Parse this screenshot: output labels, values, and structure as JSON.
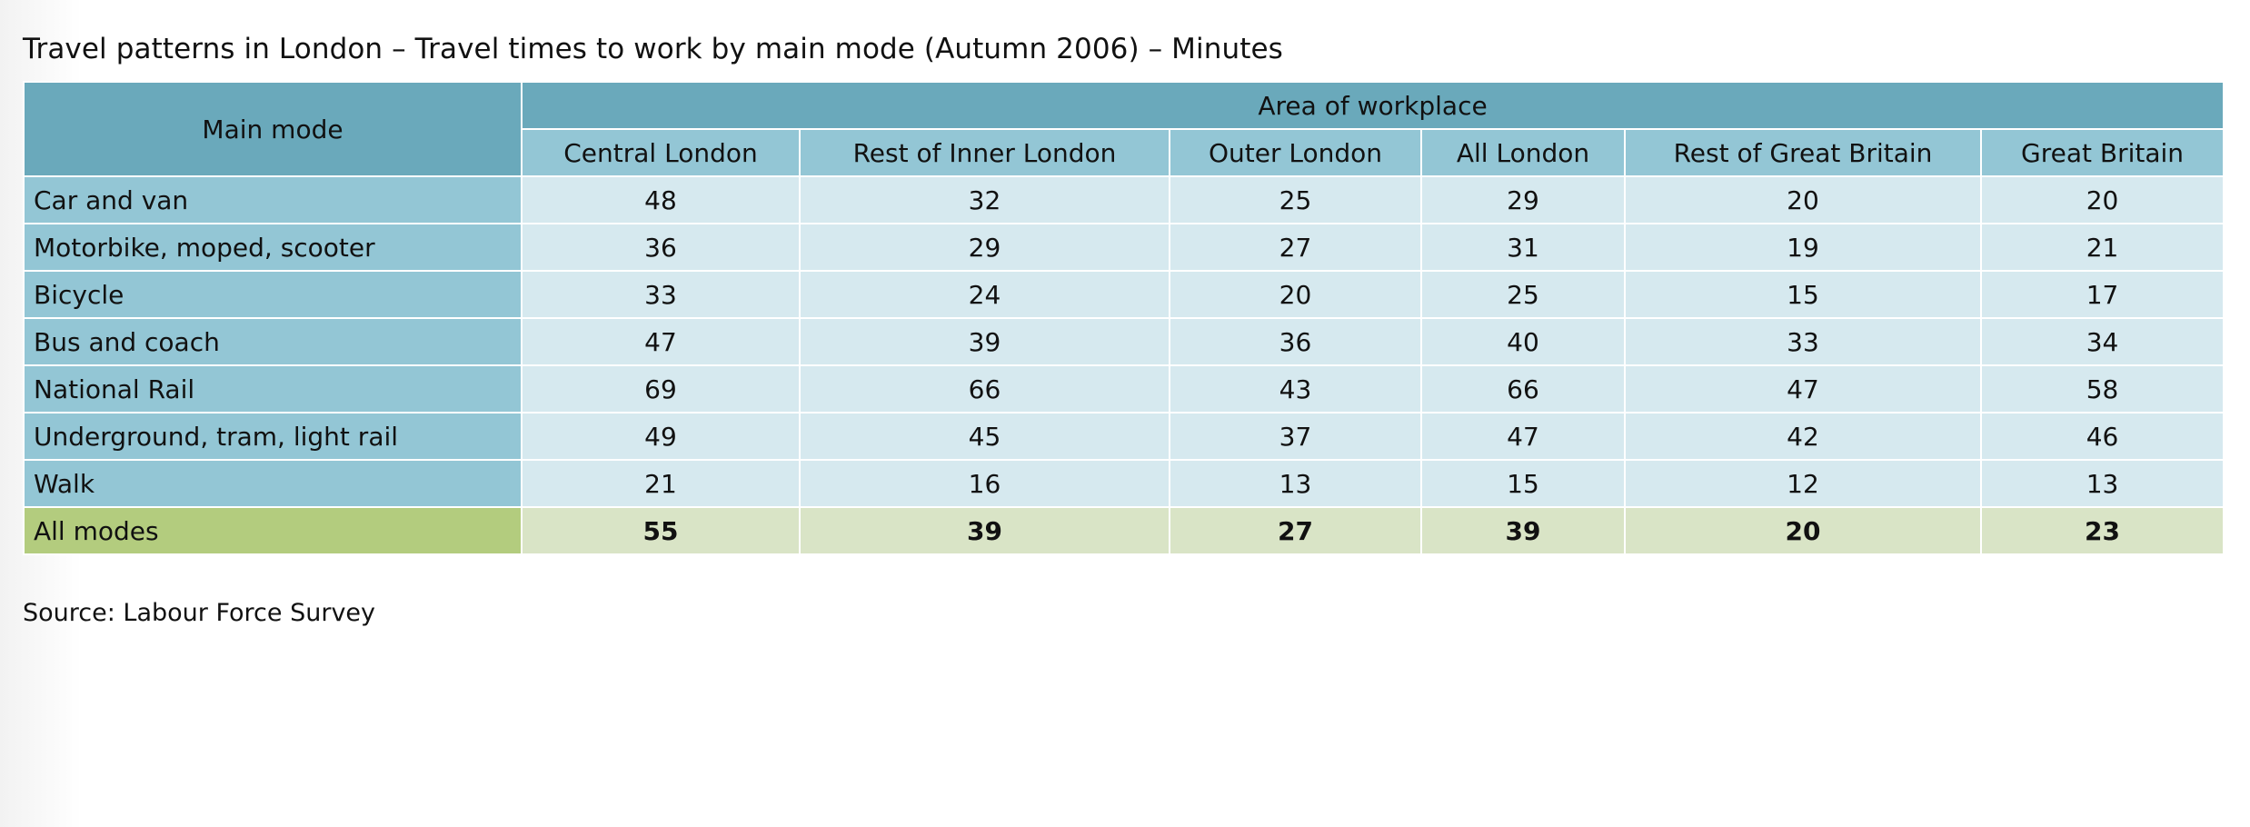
{
  "title": "Travel patterns in London – Travel times to work by main mode (Autumn 2006) – Minutes",
  "source": "Source: Labour Force Survey",
  "colors": {
    "header_dark": "#6aa9bb",
    "header_light": "#93c6d5",
    "cell": "#d6e9ef",
    "total_label": "#b3cc7e",
    "total_cell": "#d9e4c6"
  },
  "chart_data": {
    "type": "table",
    "title": "Travel patterns in London – Travel times to work by main mode (Autumn 2006) – Minutes",
    "row_header": "Main mode",
    "column_group": "Area of workplace",
    "columns": [
      "Central London",
      "Rest of Inner London",
      "Outer London",
      "All London",
      "Rest of Great Britain",
      "Great Britain"
    ],
    "rows": [
      {
        "label": "Car and van",
        "values": [
          "48",
          "32",
          "25",
          "29",
          "20",
          "20"
        ]
      },
      {
        "label": "Motorbike, moped, scooter",
        "values": [
          "36",
          "29",
          "27",
          "31",
          "19",
          "21"
        ]
      },
      {
        "label": "Bicycle",
        "values": [
          "33",
          "24",
          "20",
          "25",
          "15",
          "17"
        ]
      },
      {
        "label": "Bus and coach",
        "values": [
          "47",
          "39",
          "36",
          "40",
          "33",
          "34"
        ]
      },
      {
        "label": "National Rail",
        "values": [
          "69",
          "66",
          "43",
          "66",
          "47",
          "58"
        ]
      },
      {
        "label": "Underground, tram, light rail",
        "values": [
          "49",
          "45",
          "37",
          "47",
          "42",
          "46"
        ]
      },
      {
        "label": "Walk",
        "values": [
          "21",
          "16",
          "13",
          "15",
          "12",
          "13"
        ]
      },
      {
        "label": "All modes",
        "values": [
          "55",
          "39",
          "27",
          "39",
          "20",
          "23"
        ]
      }
    ]
  }
}
